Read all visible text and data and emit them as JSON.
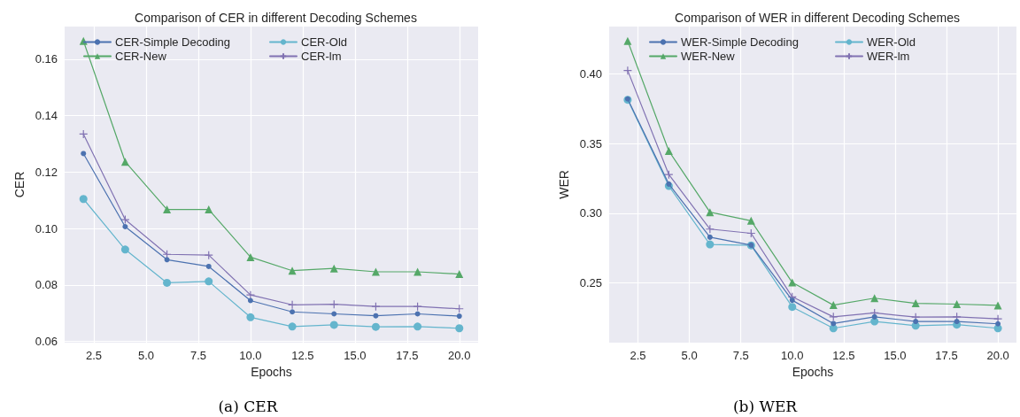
{
  "chart_data": [
    {
      "type": "line",
      "title": "Comparison of CER in different Decoding Schemes",
      "xlabel": "Epochs",
      "ylabel": "CER",
      "annotations": [
        "(a) CER"
      ],
      "x": [
        2,
        4,
        6,
        8,
        10,
        12,
        14,
        16,
        18,
        20
      ],
      "series": [
        {
          "name": "CER-Simple Decoding",
          "color": "#4c72b0",
          "marker": "circle",
          "values": [
            0.1266,
            0.1007,
            0.089,
            0.0866,
            0.0745,
            0.0705,
            0.0698,
            0.0691,
            0.0698,
            0.069
          ]
        },
        {
          "name": "CER-New",
          "color": "#55a868",
          "marker": "triangle",
          "values": [
            0.1665,
            0.1237,
            0.1068,
            0.1068,
            0.0899,
            0.0851,
            0.0859,
            0.0847,
            0.0847,
            0.0839
          ]
        },
        {
          "name": "CER-Old",
          "color": "#64b5cd",
          "marker": "circle",
          "values": [
            0.1105,
            0.0926,
            0.0808,
            0.0813,
            0.0686,
            0.0653,
            0.0659,
            0.0652,
            0.0653,
            0.0647
          ]
        },
        {
          "name": "CER-lm",
          "color": "#8172b2",
          "marker": "cross",
          "values": [
            0.1335,
            0.1032,
            0.0909,
            0.0906,
            0.0765,
            0.073,
            0.0732,
            0.0724,
            0.0724,
            0.0716
          ]
        }
      ],
      "xlim": [
        1.1,
        20.9
      ],
      "xticks": [
        2.5,
        {
          "value": 5,
          "label": "5.0"
        },
        7.5,
        {
          "value": 10,
          "label": "10.0"
        },
        12.5,
        {
          "value": 15,
          "label": "15.0"
        },
        17.5,
        {
          "value": 20,
          "label": "20.0"
        }
      ],
      "ylim": [
        0.0596,
        0.1716
      ],
      "yticks": [
        0.06,
        0.08,
        {
          "value": 0.1,
          "label": "0.10"
        },
        0.12,
        0.14,
        0.16
      ],
      "grid": true,
      "legend": "top left",
      "line_style": "solid"
    },
    {
      "type": "line",
      "title": "Comparison of WER in different Decoding Schemes",
      "xlabel": "Epochs",
      "ylabel": "WER",
      "annotations": [
        "(b) WER"
      ],
      "x": [
        2,
        4,
        6,
        8,
        10,
        12,
        14,
        16,
        18,
        20
      ],
      "series": [
        {
          "name": "WER-Simple Decoding",
          "color": "#4c72b0",
          "marker": "circle",
          "values": [
            0.382,
            0.321,
            0.2829,
            0.2772,
            0.2377,
            0.221,
            0.2258,
            0.2225,
            0.2225,
            0.2208
          ]
        },
        {
          "name": "WER-New",
          "color": "#55a868",
          "marker": "triangle",
          "values": [
            0.4236,
            0.3447,
            0.3008,
            0.2947,
            0.2504,
            0.2342,
            0.2392,
            0.2355,
            0.2349,
            0.234
          ]
        },
        {
          "name": "WER-Old",
          "color": "#64b5cd",
          "marker": "circle",
          "values": [
            0.3814,
            0.3196,
            0.2777,
            0.277,
            0.2329,
            0.2176,
            0.2225,
            0.2195,
            0.2202,
            0.2176
          ]
        },
        {
          "name": "WER-lm",
          "color": "#8172b2",
          "marker": "cross",
          "values": [
            0.4024,
            0.3278,
            0.2887,
            0.2857,
            0.2401,
            0.2258,
            0.2286,
            0.2256,
            0.2258,
            0.2243
          ]
        }
      ],
      "xlim": [
        1.1,
        20.9
      ],
      "xticks": [
        2.5,
        {
          "value": 5,
          "label": "5.0"
        },
        7.5,
        {
          "value": 10,
          "label": "10.0"
        },
        12.5,
        {
          "value": 15,
          "label": "15.0"
        },
        17.5,
        {
          "value": 20,
          "label": "20.0"
        }
      ],
      "ylim": [
        0.2073,
        0.4339
      ],
      "yticks": [
        0.25,
        {
          "value": 0.3,
          "label": "0.30"
        },
        0.35,
        {
          "value": 0.4,
          "label": "0.40"
        }
      ],
      "grid": true,
      "legend": "top left",
      "line_style": "solid"
    }
  ]
}
